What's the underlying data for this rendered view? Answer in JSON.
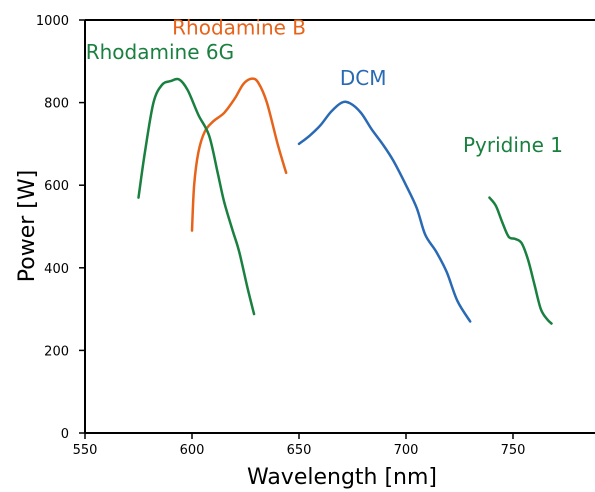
{
  "chart_data": {
    "type": "line",
    "title": "",
    "xlabel": "Wavelength [nm]",
    "ylabel": "Power [W]",
    "xlim": [
      550,
      840
    ],
    "ylim": [
      0,
      1000
    ],
    "x_ticks": [
      550,
      600,
      650,
      700,
      750
    ],
    "y_ticks": [
      0,
      200,
      400,
      600,
      800,
      1000
    ],
    "legend": "none",
    "grid": false,
    "series": [
      {
        "name": "Rhodamine B",
        "color": "#e8631a",
        "points": [
          [
            600,
            490
          ],
          [
            601,
            600
          ],
          [
            603,
            680
          ],
          [
            606,
            730
          ],
          [
            610,
            755
          ],
          [
            615,
            775
          ],
          [
            620,
            810
          ],
          [
            624,
            845
          ],
          [
            628,
            858
          ],
          [
            631,
            848
          ],
          [
            635,
            800
          ],
          [
            640,
            700
          ],
          [
            644,
            630
          ]
        ]
      },
      {
        "name": "Rhodamine 6G",
        "color": "#1a8040",
        "points": [
          [
            575,
            570
          ],
          [
            578,
            680
          ],
          [
            582,
            800
          ],
          [
            586,
            843
          ],
          [
            590,
            852
          ],
          [
            594,
            856
          ],
          [
            598,
            830
          ],
          [
            603,
            770
          ],
          [
            608,
            720
          ],
          [
            612,
            630
          ],
          [
            615,
            560
          ],
          [
            619,
            490
          ],
          [
            622,
            440
          ],
          [
            626,
            350
          ],
          [
            629,
            288
          ]
        ]
      },
      {
        "name": "DCM",
        "color": "#2a6ab4",
        "points": [
          [
            650,
            700
          ],
          [
            655,
            720
          ],
          [
            660,
            745
          ],
          [
            665,
            778
          ],
          [
            670,
            800
          ],
          [
            674,
            798
          ],
          [
            679,
            775
          ],
          [
            684,
            735
          ],
          [
            689,
            700
          ],
          [
            694,
            660
          ],
          [
            700,
            600
          ],
          [
            705,
            545
          ],
          [
            709,
            480
          ],
          [
            714,
            440
          ],
          [
            719,
            390
          ],
          [
            724,
            320
          ],
          [
            730,
            270
          ]
        ]
      },
      {
        "name": "Pyridine 1",
        "color": "#1a8040",
        "points": [
          [
            739,
            570
          ],
          [
            742,
            550
          ],
          [
            745,
            510
          ],
          [
            748,
            475
          ],
          [
            751,
            470
          ],
          [
            754,
            460
          ],
          [
            757,
            420
          ],
          [
            760,
            360
          ],
          [
            763,
            300
          ],
          [
            766,
            275
          ],
          [
            768,
            265
          ]
        ]
      }
    ],
    "annotations": [
      {
        "text": "Rhodamine B",
        "x": 622,
        "y": 965,
        "color": "#e8631a"
      },
      {
        "text": "Rhodamine 6G",
        "x": 585,
        "y": 905,
        "color": "#1a8040"
      },
      {
        "text": "DCM",
        "x": 680,
        "y": 843,
        "color": "#2a6ab4"
      },
      {
        "text": "Pyridine 1",
        "x": 750,
        "y": 680,
        "color": "#1a8040"
      }
    ]
  }
}
